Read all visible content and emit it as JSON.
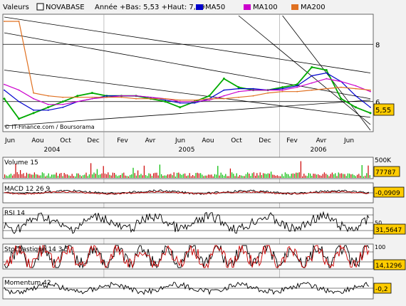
{
  "header": {
    "label": "Valeurs",
    "stock": "NOVABASE",
    "range_text": "Année +Bas: 5,53 +Haut: 7,29",
    "legend": [
      {
        "name": "MA50",
        "color": "#0000cc"
      },
      {
        "name": "MA100",
        "color": "#cc00cc"
      },
      {
        "name": "MA200",
        "color": "#e07020"
      }
    ]
  },
  "credit": "© IT-Finance.com / Boursorama",
  "x_axis": {
    "months": [
      "Jun",
      "Aou",
      "Oct",
      "Dec",
      "Fev",
      "Avr",
      "Jun",
      "Aou",
      "Oct",
      "Dec",
      "Fev",
      "Avr",
      "Jun"
    ],
    "years": [
      "2004",
      "2005",
      "2006"
    ]
  },
  "panels": {
    "volume": {
      "label": "Volume 15",
      "last": "77787",
      "scale_label": "500K"
    },
    "macd": {
      "label": "MACD 12 26 9",
      "last": "-0,0909"
    },
    "rsi": {
      "label": "RSI 14",
      "last": "31,5647",
      "scale_label": "50"
    },
    "stoch": {
      "label": "Stochastique 14 3 5",
      "last": "14,1296",
      "scale_label": "100"
    },
    "momentum": {
      "label": "Momentum 42",
      "last": "-0,2"
    }
  },
  "colors": {
    "price_up": "#00aa00",
    "price_down": "#cc0000",
    "ma50": "#0000cc",
    "ma100": "#cc00cc",
    "ma200": "#e07020",
    "tag_bg": "#ffcc00",
    "panel_bg": "#ffffff",
    "volume_up": "#00bb00",
    "volume_down": "#cc0000"
  },
  "chart_data": {
    "type": "line",
    "title": "NOVABASE",
    "ylabel": "",
    "yticks": [
      6,
      8
    ],
    "ylim": [
      5.0,
      9.0
    ],
    "last_price": "5,55",
    "x": [
      "2004-06",
      "2004-07",
      "2004-08",
      "2004-09",
      "2004-10",
      "2004-11",
      "2004-12",
      "2005-01",
      "2005-02",
      "2005-03",
      "2005-04",
      "2005-05",
      "2005-06",
      "2005-07",
      "2005-08",
      "2005-09",
      "2005-10",
      "2005-11",
      "2005-12",
      "2006-01",
      "2006-02",
      "2006-03",
      "2006-04",
      "2006-05",
      "2006-06",
      "2006-07"
    ],
    "series": [
      {
        "name": "",
        "values": [
          6.1,
          5.4,
          5.6,
          5.8,
          6.0,
          6.2,
          6.3,
          6.2,
          6.2,
          6.2,
          6.1,
          6.0,
          5.8,
          6.0,
          6.2,
          6.8,
          6.5,
          6.4,
          6.4,
          6.5,
          6.6,
          7.2,
          7.1,
          6.1,
          5.8,
          5.6
        ]
      },
      {
        "name": "MA50",
        "values": [
          6.4,
          6.0,
          5.7,
          5.7,
          5.8,
          6.0,
          6.1,
          6.2,
          6.2,
          6.2,
          6.15,
          6.05,
          5.95,
          5.95,
          6.1,
          6.4,
          6.45,
          6.45,
          6.4,
          6.45,
          6.55,
          6.9,
          7.0,
          6.7,
          6.2,
          5.8
        ]
      },
      {
        "name": "MA100",
        "values": [
          6.6,
          6.4,
          6.1,
          5.9,
          5.9,
          6.0,
          6.1,
          6.15,
          6.2,
          6.2,
          6.15,
          6.1,
          6.0,
          6.0,
          6.05,
          6.2,
          6.35,
          6.4,
          6.4,
          6.4,
          6.5,
          6.65,
          6.8,
          6.7,
          6.55,
          6.35
        ]
      },
      {
        "name": "MA200",
        "values": [
          8.8,
          8.8,
          6.3,
          6.2,
          6.15,
          6.15,
          6.15,
          6.15,
          6.15,
          6.1,
          6.1,
          6.1,
          6.05,
          6.05,
          6.1,
          6.1,
          6.15,
          6.2,
          6.3,
          6.35,
          6.35,
          6.4,
          6.45,
          6.5,
          6.45,
          6.4
        ]
      }
    ]
  }
}
